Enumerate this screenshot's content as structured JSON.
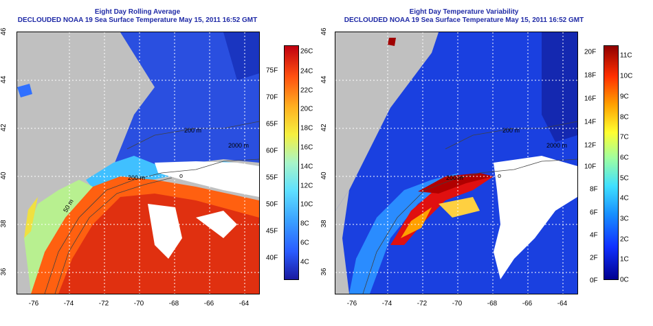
{
  "left": {
    "title": "Eight Day Rolling Average",
    "subtitle": "DECLOUDED NOAA 19 Sea Surface Temperature May 15, 2011 16:52 GMT",
    "x_ticks": [
      "-76",
      "-74",
      "-72",
      "-70",
      "-68",
      "-66",
      "-64"
    ],
    "y_ticks": [
      "36",
      "38",
      "40",
      "42",
      "44",
      "46"
    ],
    "colorbar_celsius": [
      "26C",
      "24C",
      "22C",
      "20C",
      "18C",
      "16C",
      "14C",
      "12C",
      "10C",
      "8C",
      "6C",
      "4C"
    ],
    "colorbar_fahrenheit": [
      "75F",
      "70F",
      "65F",
      "60F",
      "55F",
      "50F",
      "45F",
      "40F"
    ],
    "contour_labels": [
      "2000 m",
      "200 m",
      "200 m",
      "50 m",
      "o"
    ]
  },
  "right": {
    "title": "Eight Day Temperature Variability",
    "subtitle": "DECLOUDED NOAA 19 Sea Surface Temperature May 15, 2011 16:52 GMT",
    "x_ticks": [
      "-76",
      "-74",
      "-72",
      "-70",
      "-68",
      "-66",
      "-64"
    ],
    "y_ticks": [
      "36",
      "38",
      "40",
      "42",
      "44",
      "46"
    ],
    "colorbar_fahrenheit": [
      "20F",
      "18F",
      "16F",
      "14F",
      "12F",
      "10F",
      "8F",
      "6F",
      "4F",
      "2F",
      "0F"
    ],
    "colorbar_celsius": [
      "11C",
      "10C",
      "9C",
      "8C",
      "7C",
      "6C",
      "5C",
      "4C",
      "3C",
      "2C",
      "1C",
      "0C"
    ],
    "contour_labels": [
      "2000 m",
      "200 m",
      "200 m",
      "o"
    ]
  },
  "colors": {
    "land": "#c0c0c0",
    "title_blue": "#1f2aa6"
  }
}
